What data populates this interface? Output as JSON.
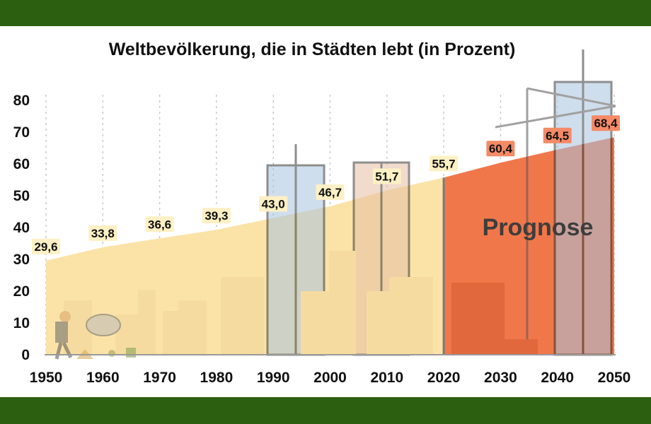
{
  "chart_data": {
    "type": "area",
    "title": "Weltbevölkerung, die in Städten lebt (in Prozent)",
    "x": [
      1950,
      1960,
      1970,
      1980,
      1990,
      2000,
      2010,
      2020,
      2030,
      2040,
      2050
    ],
    "values": [
      29.6,
      33.8,
      36.6,
      39.3,
      43.0,
      46.7,
      51.7,
      55.7,
      60.4,
      64.5,
      68.4
    ],
    "labels": [
      "29,6",
      "33,8",
      "36,6",
      "39,3",
      "43,0",
      "46,7",
      "51,7",
      "55,7",
      "60,4",
      "64,5",
      "68,4"
    ],
    "ylim": [
      0,
      80
    ],
    "yticks": [
      0,
      10,
      20,
      30,
      40,
      50,
      60,
      70,
      80
    ],
    "xticks": [
      1950,
      1960,
      1970,
      1980,
      1990,
      2000,
      2010,
      2020,
      2030,
      2040,
      2050
    ],
    "forecast_from": 2020,
    "forecast_label": "Prognose",
    "grid": "vertical dotted",
    "colors": {
      "history_fill": "#fbe3a8",
      "forecast_fill": "#f0774a",
      "history_label_bg": "#fdf0c4",
      "forecast_label_bg": "#f58a66",
      "band": "#2c5f0f",
      "divider": "#7a7a7a"
    }
  },
  "decor": {
    "icons": [
      "construction-worker-icon",
      "cement-mixer-icon",
      "skyscraper-icon",
      "crane-icon"
    ]
  }
}
